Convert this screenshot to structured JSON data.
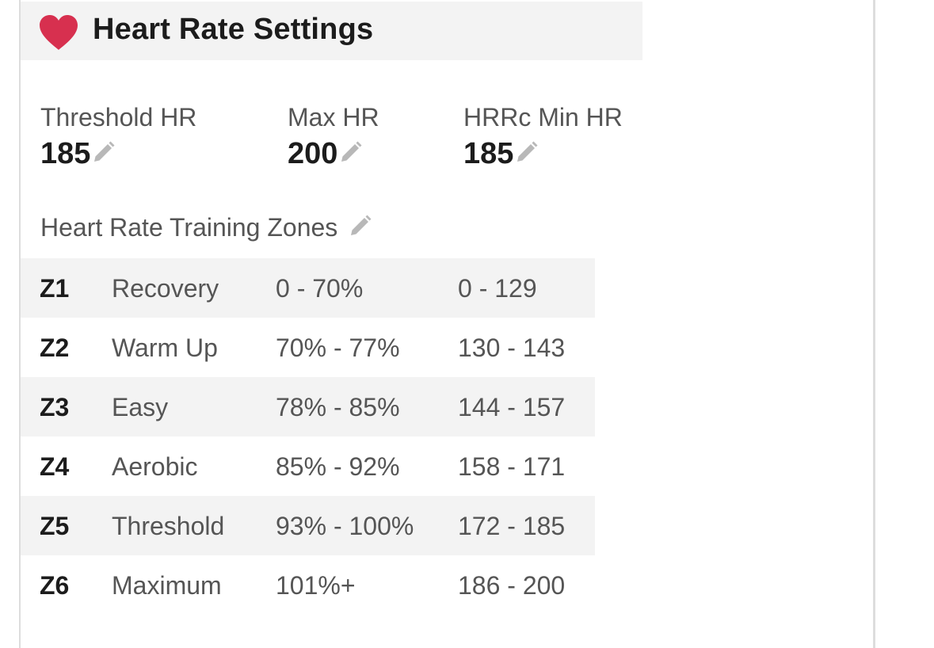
{
  "header": {
    "title": "Heart Rate Settings",
    "icon": "heart-icon",
    "icon_color": "#d7304f"
  },
  "stats": [
    {
      "label": "Threshold HR",
      "value": "185"
    },
    {
      "label": "Max HR",
      "value": "200"
    },
    {
      "label": "HRRc Min HR",
      "value": "185"
    }
  ],
  "zones_section": {
    "title": "Heart Rate Training Zones"
  },
  "zones": [
    {
      "id": "Z1",
      "name": "Recovery",
      "percent": "0 - 70%",
      "bpm": "0 - 129"
    },
    {
      "id": "Z2",
      "name": "Warm Up",
      "percent": "70% - 77%",
      "bpm": "130 - 143"
    },
    {
      "id": "Z3",
      "name": "Easy",
      "percent": "78% - 85%",
      "bpm": "144 - 157"
    },
    {
      "id": "Z4",
      "name": "Aerobic",
      "percent": "85% - 92%",
      "bpm": "158 - 171"
    },
    {
      "id": "Z5",
      "name": "Threshold",
      "percent": "93% - 100%",
      "bpm": "172 - 185"
    },
    {
      "id": "Z6",
      "name": "Maximum",
      "percent": "101%+",
      "bpm": "186 - 200"
    }
  ]
}
